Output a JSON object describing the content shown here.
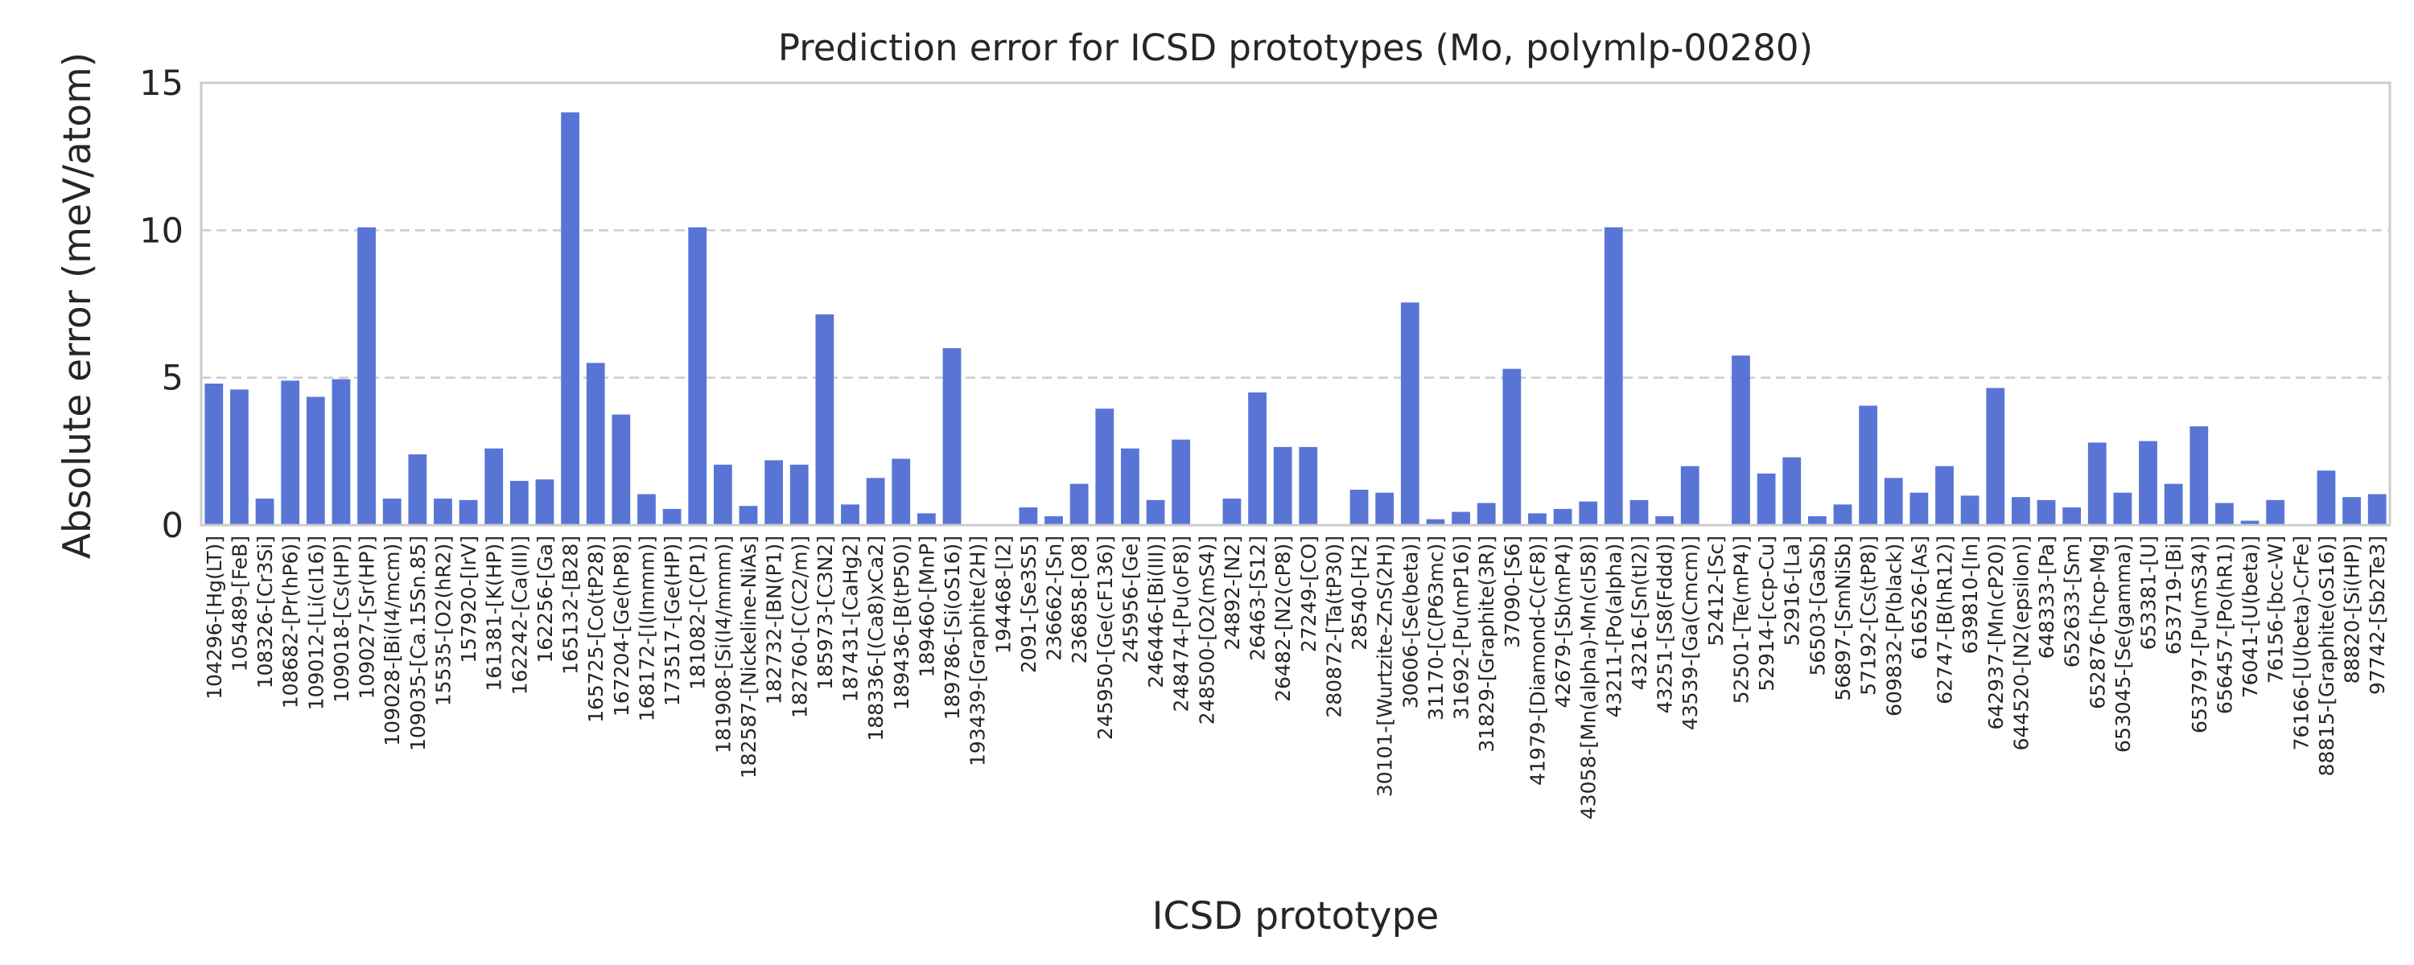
{
  "chart_data": {
    "type": "bar",
    "title": "Prediction error for ICSD prototypes (Mo, polymlp-00280)",
    "xlabel": "ICSD prototype",
    "ylabel": "Absolute error (meV/atom)",
    "ylim": [
      0,
      15
    ],
    "yticks": [
      0,
      5,
      10,
      15
    ],
    "grid": "horizontal dashed",
    "bar_color": "#5875d6",
    "categories": [
      "104296-[Hg(LT)]",
      "105489-[FeB]",
      "108326-[Cr3Si]",
      "108682-[Pr(hP6)]",
      "109012-[Li(cI16)]",
      "109018-[Cs(HP)]",
      "109027-[Sr(HP)]",
      "109028-[Bi(I4/mcm)]",
      "109035-[Ca.15Sn.85]",
      "15535-[O2(hR2)]",
      "157920-[IrV]",
      "161381-[K(HP)]",
      "162242-[Ca(III)]",
      "162256-[Ga]",
      "165132-[B28]",
      "165725-[Co(tP28)]",
      "167204-[Ge(hP8)]",
      "168172-[I(Immm)]",
      "173517-[Ge(HP)]",
      "181082-[C(P1)]",
      "181908-[Si(I4/mmm)]",
      "182587-[Nickeline-NiAs]",
      "182732-[BN(P1)]",
      "182760-[C(C2/m)]",
      "185973-[C3N2]",
      "187431-[CaHg2]",
      "188336-[(Ca8)xCa2]",
      "189436-[B(tP50)]",
      "189460-[MnP]",
      "189786-[Si(oS16)]",
      "193439-[Graphite(2H)]",
      "194468-[I2]",
      "2091-[Se3S5]",
      "236662-[Sn]",
      "236858-[O8]",
      "245950-[Ge(cF136)]",
      "245956-[Ge]",
      "246446-[Bi(III)]",
      "248474-[Pu(oF8)]",
      "248500-[O2(mS4)]",
      "24892-[N2]",
      "26463-[S12]",
      "26482-[N2(cP8)]",
      "27249-[CO]",
      "280872-[Ta(tP30)]",
      "28540-[H2]",
      "30101-[Wurtzite-ZnS(2H)]",
      "30606-[Se(beta)]",
      "31170-[C(P63mc)]",
      "31692-[Pu(mP16)]",
      "31829-[Graphite(3R)]",
      "37090-[S6]",
      "41979-[Diamond-C(cF8)]",
      "42679-[Sb(mP4)]",
      "43058-[Mn(alpha)-Mn(cI58)]",
      "43211-[Po(alpha)]",
      "43216-[Sn(tI2)]",
      "43251-[S8(Fddd)]",
      "43539-[Ga(Cmcm)]",
      "52412-[Sc]",
      "52501-[Te(mP4)]",
      "52914-[ccp-Cu]",
      "52916-[La]",
      "56503-[GaSb]",
      "56897-[SmNiSb]",
      "57192-[Cs(tP8)]",
      "609832-[P(black)]",
      "616526-[As]",
      "62747-[B(hR12)]",
      "639810-[In]",
      "642937-[Mn(cP20)]",
      "644520-[N2(epsilon)]",
      "648333-[Pa]",
      "652633-[Sm]",
      "652876-[hcp-Mg]",
      "653045-[Se(gamma)]",
      "653381-[U]",
      "653719-[Bi]",
      "653797-[Pu(mS34)]",
      "656457-[Po(hR1)]",
      "76041-[U(beta)]",
      "76156-[bcc-W]",
      "76166-[U(beta)-CrFe]",
      "88815-[Graphite(oS16)]",
      "88820-[Si(HP)]",
      "97742-[Sb2Te3]"
    ],
    "values": [
      4.8,
      4.6,
      0.9,
      4.9,
      4.35,
      4.95,
      10.1,
      0.9,
      2.4,
      0.9,
      0.85,
      2.6,
      1.5,
      1.55,
      14.0,
      5.5,
      3.75,
      1.05,
      0.55,
      10.1,
      2.05,
      0.65,
      2.2,
      2.05,
      7.15,
      0.7,
      1.6,
      2.25,
      0.4,
      6.0,
      0.0,
      0.0,
      0.6,
      0.3,
      1.4,
      3.95,
      2.6,
      0.85,
      2.9,
      0.0,
      0.9,
      4.5,
      2.65,
      2.65,
      0.0,
      1.2,
      1.1,
      7.55,
      0.2,
      0.45,
      0.75,
      5.3,
      0.4,
      0.55,
      0.8,
      10.1,
      0.85,
      0.3,
      2.0,
      0.0,
      5.75,
      1.75,
      2.3,
      0.3,
      0.7,
      4.05,
      1.6,
      1.1,
      2.0,
      1.0,
      4.65,
      0.95,
      0.85,
      0.6,
      2.8,
      1.1,
      2.85,
      1.4,
      3.35,
      0.75,
      0.15,
      0.85,
      0.0,
      1.85,
      0.95,
      1.05
    ]
  }
}
